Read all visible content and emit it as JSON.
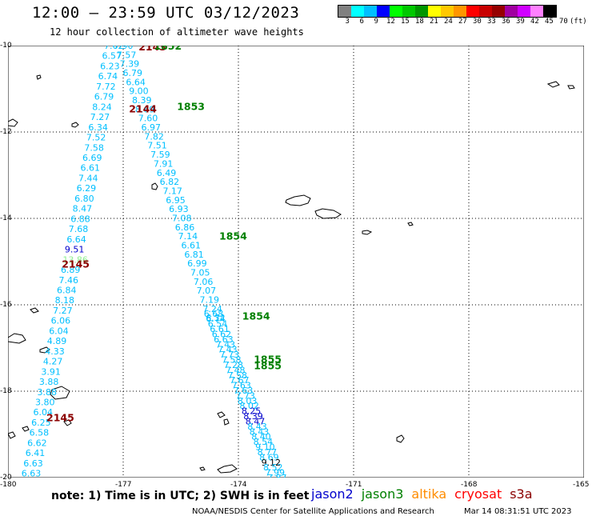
{
  "header": {
    "title": "12:00 — 23:59 UTC 03/12/2023",
    "subtitle": "12 hour collection of altimeter wave heights"
  },
  "legend": {
    "colors": [
      "#808080",
      "#00ffff",
      "#00bfff",
      "#0000ff",
      "#00ff00",
      "#00c800",
      "#009600",
      "#ffff00",
      "#ffc800",
      "#ff9600",
      "#ff0000",
      "#c80000",
      "#960000",
      "#a000a0",
      "#d000ff",
      "#ff80ff",
      "#000000"
    ],
    "labels": [
      "3",
      "6",
      "9",
      "12",
      "15",
      "18",
      "21",
      "24",
      "27",
      "30",
      "33",
      "36",
      "39",
      "42",
      "45",
      "70",
      "(ft)"
    ]
  },
  "map": {
    "lon_ticks": [
      "-180",
      "-177",
      "-174",
      "-171",
      "-168",
      "-165"
    ],
    "lat_ticks": [
      "-10",
      "-12",
      "-14",
      "-16",
      "-18",
      "-20"
    ]
  },
  "tracks": [
    {
      "name": "west",
      "color": "#00bfff",
      "start": [
        -177.25,
        -10.0
      ],
      "end": [
        -179.4,
        -19.9
      ],
      "values": [
        "7.62",
        "6.57",
        "6.23",
        "6.74",
        "7.72",
        "6.79",
        "8.24",
        "7.27",
        "6.34",
        "7.52",
        "7.58",
        "6.69",
        "6.61",
        "7.44",
        "6.29",
        "6.80",
        "8.47",
        "6.88",
        "7.68",
        "6.64",
        "9.51",
        "13.86",
        "6.89",
        "7.46",
        "6.84",
        "8.18",
        "7.27",
        "6.06",
        "6.04",
        "4.89",
        "4.33",
        "4.27",
        "3.91",
        "3.88",
        "3.88",
        "3.80",
        "6.04",
        "6.25",
        "6.58",
        "6.62",
        "6.41",
        "6.63",
        "6.63"
      ],
      "special": {
        "9.51": "#0000cc",
        "13.86": "#90ee90"
      }
    },
    {
      "name": "middle",
      "color": "#00bfff",
      "start": [
        -177.0,
        -10.0
      ],
      "end": [
        -174.6,
        -16.3
      ],
      "values": [
        "7.90",
        "7.57",
        "7.39",
        "6.79",
        "6.64",
        "9.00",
        "8.39",
        "8.69",
        "7.60",
        "6.97",
        "7.82",
        "7.51",
        "7.59",
        "7.91",
        "6.49",
        "6.82",
        "7.17",
        "6.95",
        "6.93",
        "7.08",
        "6.86",
        "7.14",
        "6.61",
        "6.81",
        "6.99",
        "7.05",
        "7.06",
        "7.07",
        "7.19",
        "7.24",
        "6.32"
      ],
      "special": {}
    },
    {
      "name": "east",
      "color": "#00bfff",
      "start": [
        -174.65,
        -16.2
      ],
      "end": [
        -173.0,
        -20.0
      ],
      "values": [
        "6.68",
        "6.74",
        "6.54",
        "6.61",
        "6.62",
        "6.63",
        "7.43",
        "7.43",
        "7.73",
        "7.58",
        "7.28",
        "7.48",
        "7.58",
        "7.67",
        "7.63",
        "7.63",
        "7.73",
        "8.03",
        "8.02",
        "8.25",
        "8.39",
        "8.47",
        "8.43",
        "8.43",
        "8.40",
        "8.54",
        "9.10",
        "8.77",
        "8.69",
        "9.12",
        "8.52",
        "7.99",
        "7.87"
      ],
      "special": {
        "8.25": "#0000cc",
        "8.39": "#0000cc",
        "8.47": "#0000cc",
        "9.12": "#000000"
      }
    }
  ],
  "time_labels": [
    {
      "text": "2143",
      "color": "#8b0000",
      "lon": -176.6,
      "lat": -10.02
    },
    {
      "text": "1852",
      "color": "#008000",
      "lon": -176.2,
      "lat": -10.0
    },
    {
      "text": "2144",
      "color": "#8b0000",
      "lon": -176.85,
      "lat": -11.45
    },
    {
      "text": "1853",
      "color": "#008000",
      "lon": -175.6,
      "lat": -11.4
    },
    {
      "text": "1854",
      "color": "#008000",
      "lon": -174.5,
      "lat": -14.4
    },
    {
      "text": "2145",
      "color": "#8b0000",
      "lon": -178.6,
      "lat": -15.05
    },
    {
      "text": "1854",
      "color": "#008000",
      "lon": -173.9,
      "lat": -16.25
    },
    {
      "text": "1855",
      "color": "#008000",
      "lon": -173.6,
      "lat": -17.25
    },
    {
      "text": "1855",
      "color": "#008000",
      "lon": -173.6,
      "lat": -17.4
    },
    {
      "text": "2145",
      "color": "#8b0000",
      "lon": -179.0,
      "lat": -18.6
    }
  ],
  "footer": {
    "note": "note:  1) Time is in UTC; 2) SWH is in feet",
    "satellites": [
      {
        "name": "jason2",
        "color": "#0000cc"
      },
      {
        "name": "jason3",
        "color": "#008000"
      },
      {
        "name": "altika",
        "color": "#ff8c00"
      },
      {
        "name": "cryosat",
        "color": "#ff0000"
      },
      {
        "name": "s3a",
        "color": "#8b0000"
      }
    ],
    "credit": "NOAA/NESDIS Center for Satellite Applications and Research",
    "timestamp": "Mar 14 08:31:51 UTC 2023"
  }
}
